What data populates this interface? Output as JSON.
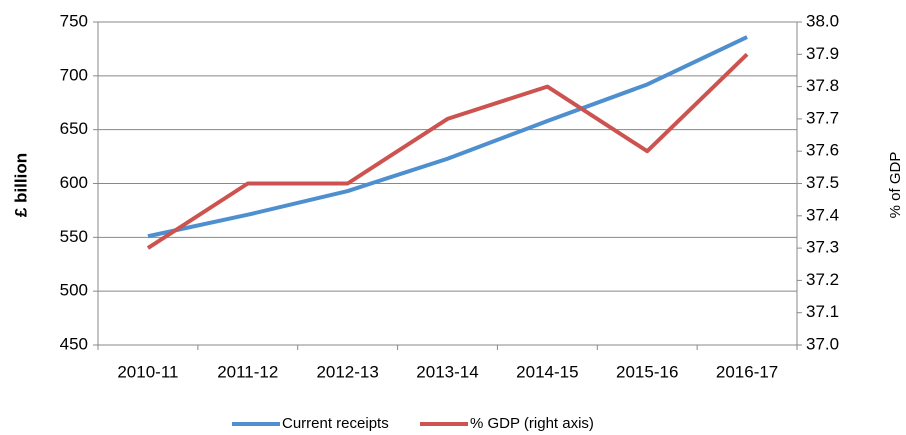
{
  "chart_data": {
    "type": "line",
    "categories": [
      "2010-11",
      "2011-12",
      "2012-13",
      "2013-14",
      "2014-15",
      "2015-16",
      "2016-17"
    ],
    "series": [
      {
        "name": "Current receipts",
        "color": "#4e8fd0",
        "values": [
          551,
          571,
          593,
          623,
          658,
          692,
          736
        ]
      },
      {
        "name": "% GDP (right axis)",
        "color": "#cc534f",
        "axis": "y2",
        "values": [
          37.3,
          37.5,
          37.5,
          37.7,
          37.8,
          37.6,
          37.9
        ]
      }
    ],
    "y_label": "£ billion",
    "y2_label": "% of GDP",
    "ylim": [
      450,
      750
    ],
    "yticks": [
      450,
      500,
      550,
      600,
      650,
      700,
      750
    ],
    "y2lim": [
      37.0,
      38.0
    ],
    "y2ticks": [
      {
        "value": 37.0,
        "label": "37.0"
      },
      37.1,
      37.2,
      37.3,
      37.4,
      37.5,
      37.6,
      37.7,
      37.8,
      37.9,
      {
        "value": 38.0,
        "label": "38.0"
      }
    ],
    "grid": true,
    "legend": "bottom"
  }
}
